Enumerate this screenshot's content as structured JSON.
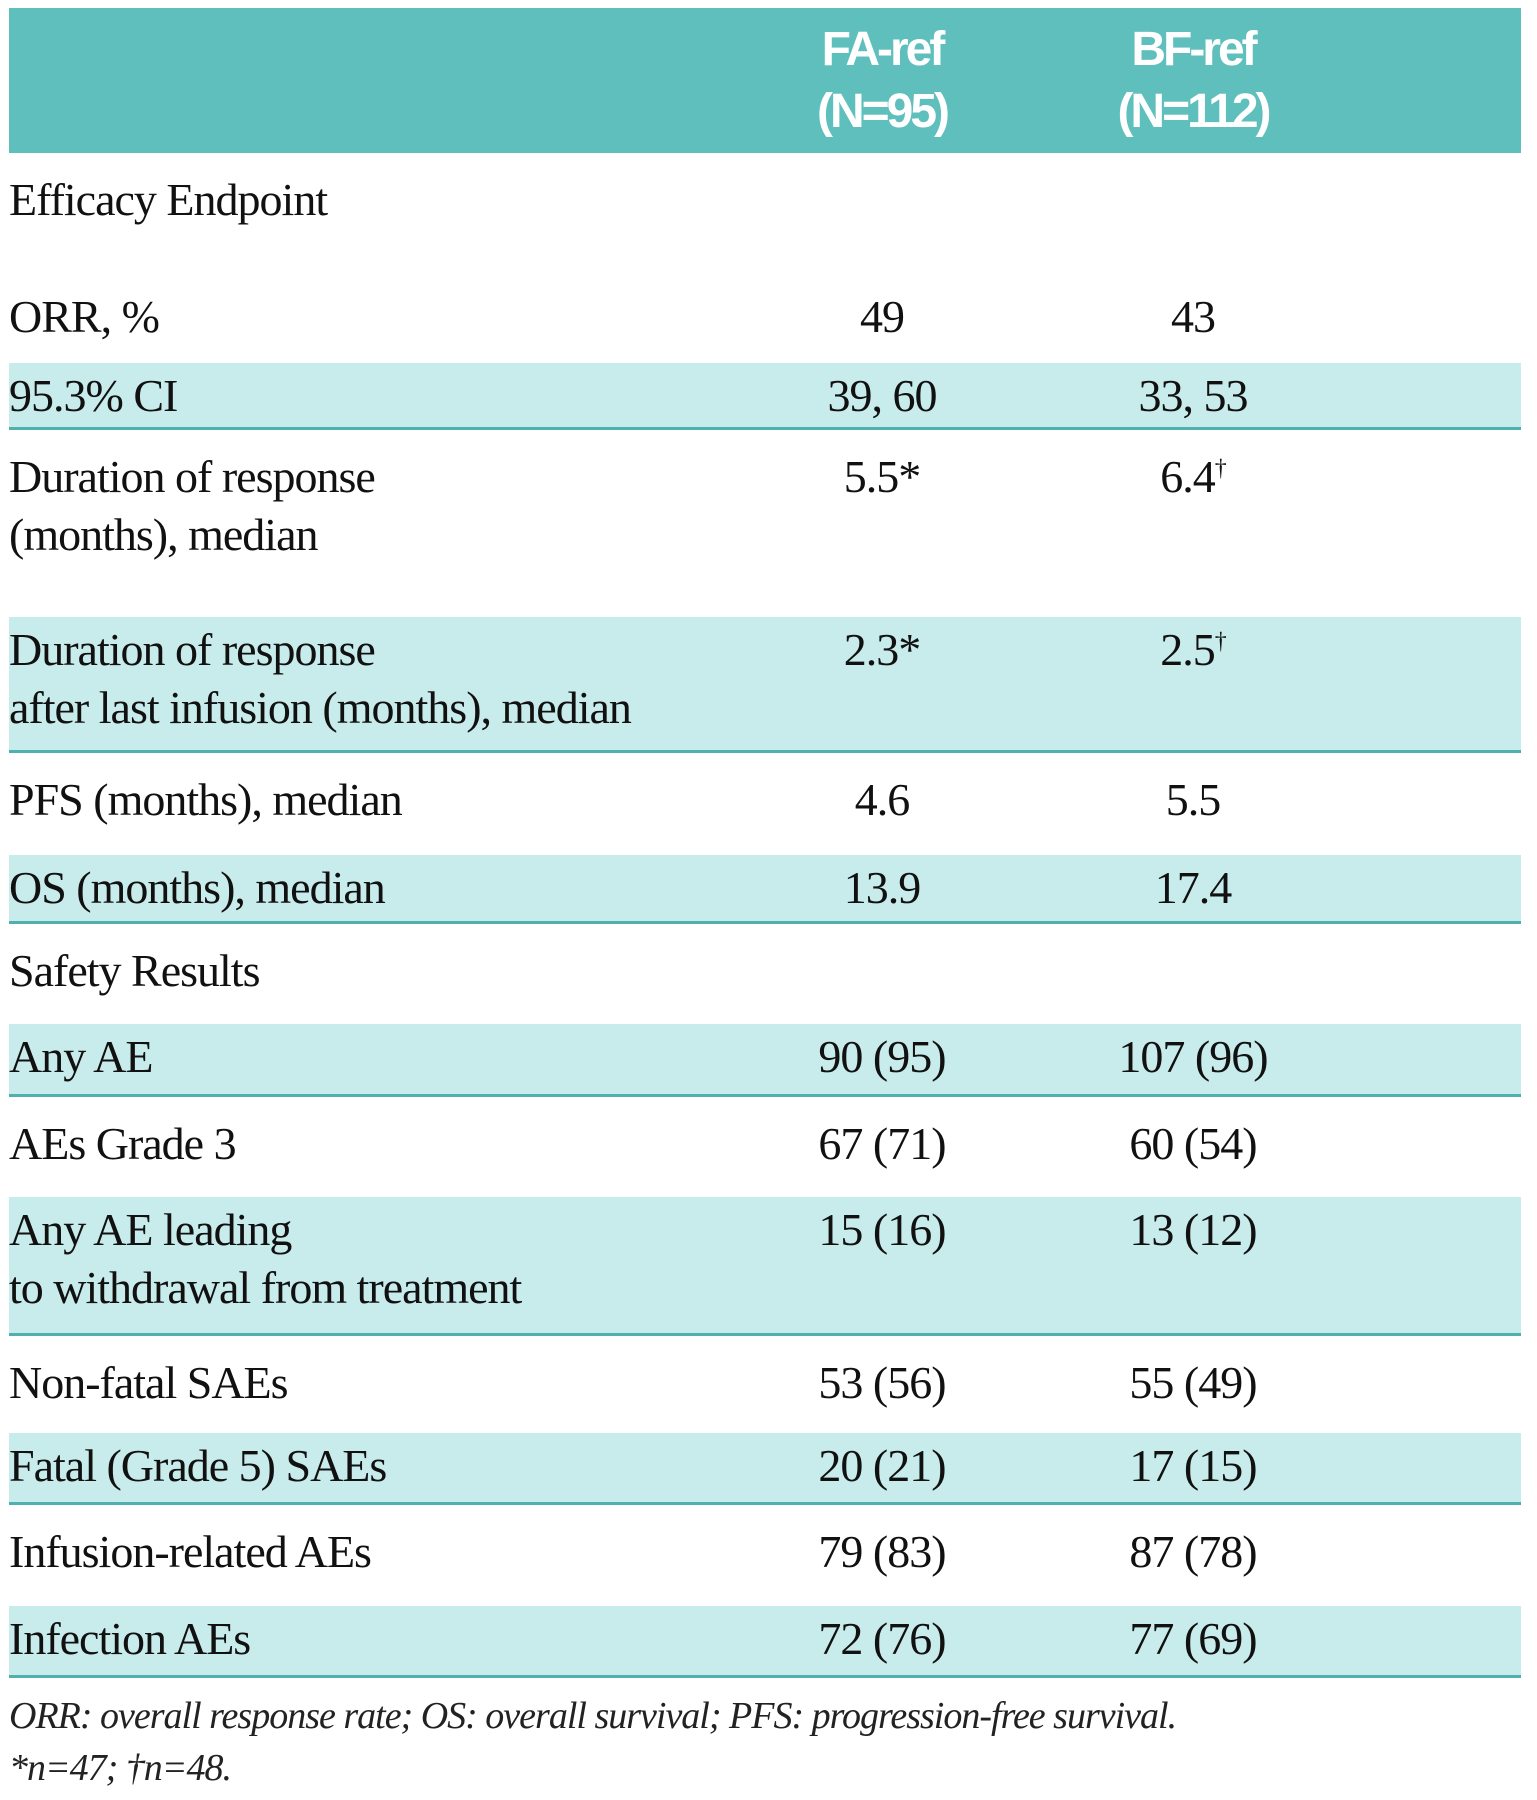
{
  "header": {
    "col0": "",
    "col1_line1": "FA-ref",
    "col1_line2": "(N=95)",
    "col2_line1": "BF-ref",
    "col2_line2": "(N=112)"
  },
  "rows": [
    {
      "label": "Efficacy Endpoint",
      "a": "",
      "b": "",
      "shaded": false
    },
    {
      "label": "ORR, %",
      "a": "49",
      "b": "43",
      "shaded": false
    },
    {
      "label": "95.3% CI",
      "a": "39, 60",
      "b": "33, 53",
      "shaded": true
    },
    {
      "label": "Duration of response",
      "label2": "(months), median",
      "a": "5.5*",
      "b": "6.4",
      "b_sup": "†",
      "shaded": false
    },
    {
      "label": "Duration of response",
      "label2": "after last infusion (months), median",
      "a": "2.3*",
      "b": "2.5",
      "b_sup": "†",
      "shaded": true
    },
    {
      "label": "PFS (months), median",
      "a": "4.6",
      "b": "5.5",
      "shaded": false
    },
    {
      "label": "OS (months), median",
      "a": "13.9",
      "b": "17.4",
      "shaded": true
    },
    {
      "label": "Safety Results",
      "a": "",
      "b": "",
      "shaded": false
    },
    {
      "label": "Any AE",
      "a": "90 (95)",
      "b": "107 (96)",
      "shaded": true
    },
    {
      "label": "AEs Grade 3",
      "a": "67 (71)",
      "b": "60 (54)",
      "shaded": false
    },
    {
      "label": "Any AE leading",
      "label2": "to withdrawal from treatment",
      "a": "15 (16)",
      "b": "13 (12)",
      "shaded": true
    },
    {
      "label": "Non-fatal SAEs",
      "a": "53 (56)",
      "b": "55 (49)",
      "shaded": false
    },
    {
      "label": "Fatal (Grade 5) SAEs",
      "a": "20 (21)",
      "b": "17 (15)",
      "shaded": true
    },
    {
      "label": "Infusion-related AEs",
      "a": "79 (83)",
      "b": "87 (78)",
      "shaded": false
    },
    {
      "label": "Infection AEs",
      "a": "72 (76)",
      "b": "77 (69)",
      "shaded": true
    }
  ],
  "footnote": {
    "line1": "ORR: overall response rate; OS: overall survival; PFS: progression-free survival.",
    "line2": "*n=47; †n=48."
  },
  "colors": {
    "header_bg": "#5fbfbd",
    "row_shade": "#c8ebeb",
    "rule": "#4fb0ad"
  }
}
